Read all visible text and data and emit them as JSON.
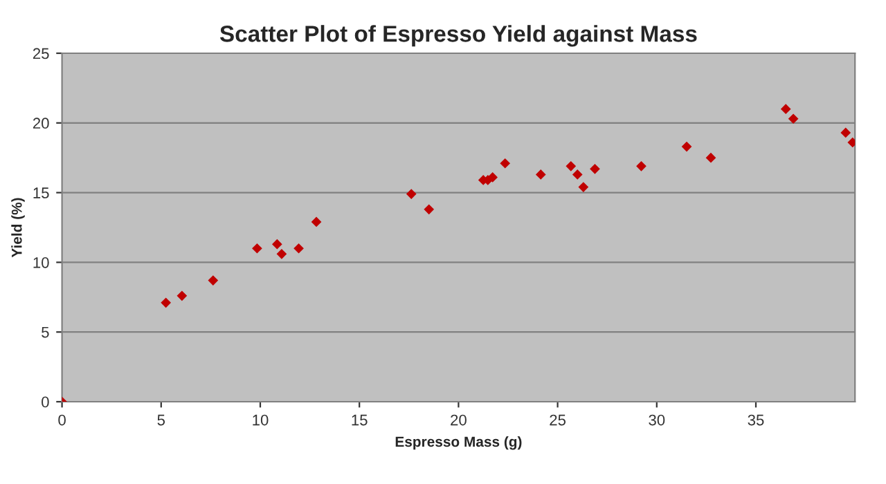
{
  "chart_data": {
    "type": "scatter",
    "title": "Scatter Plot of Espresso Yield against Mass",
    "xlabel": "Espresso Mass (g)",
    "ylabel": "Yield (%)",
    "x": [
      0,
      5.24,
      6.05,
      7.62,
      9.84,
      10.85,
      11.08,
      11.94,
      12.83,
      17.62,
      18.51,
      21.25,
      21.48,
      21.72,
      22.35,
      24.15,
      25.67,
      26.0,
      26.3,
      26.88,
      29.22,
      31.51,
      32.73,
      36.51,
      36.89,
      39.53,
      39.88
    ],
    "series": [
      {
        "color": "#c00000",
        "values": [
          0,
          7.1,
          7.6,
          8.7,
          11.0,
          11.3,
          10.6,
          11.0,
          12.9,
          14.9,
          13.8,
          15.9,
          15.9,
          16.1,
          17.1,
          16.3,
          16.9,
          16.3,
          15.4,
          16.7,
          16.9,
          18.3,
          17.5,
          21.0,
          20.3,
          19.3,
          18.6
        ]
      }
    ],
    "xlim": [
      0,
      40
    ],
    "xticks": [
      0,
      5,
      10,
      15,
      20,
      25,
      30,
      35
    ],
    "ylim": [
      0,
      25
    ],
    "yticks": [
      0,
      5,
      10,
      15,
      20,
      25
    ],
    "grid": "y",
    "marker": "diamond",
    "legend": false
  }
}
